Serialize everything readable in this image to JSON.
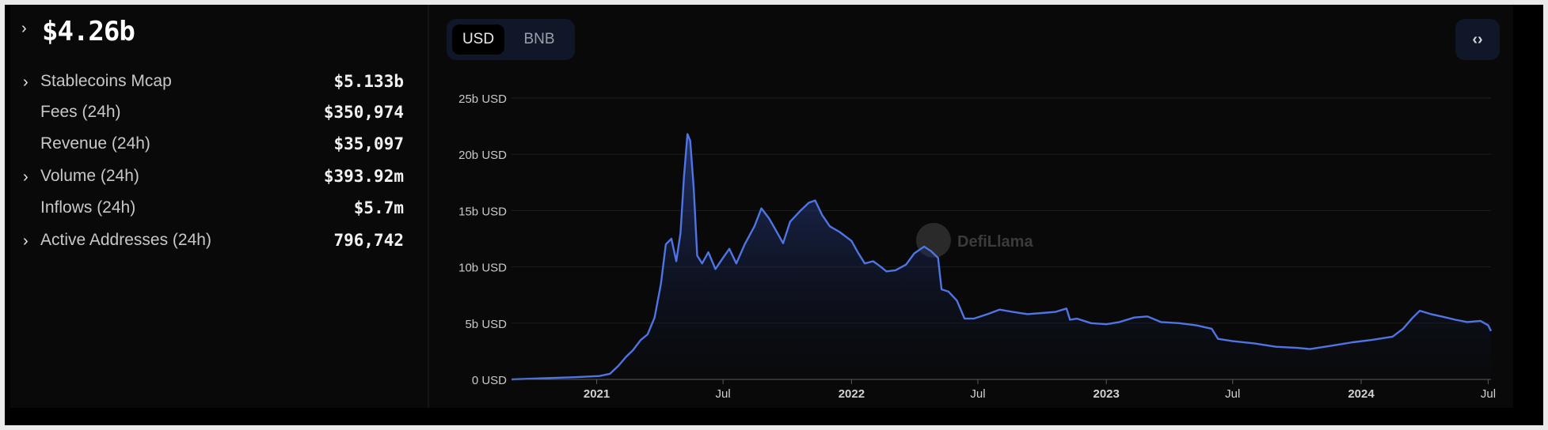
{
  "header": {
    "tvl": "$4.26b"
  },
  "metrics": [
    {
      "label": "Stablecoins Mcap",
      "value": "$5.133b",
      "expandable": true
    },
    {
      "label": "Fees (24h)",
      "value": "$350,974",
      "expandable": false
    },
    {
      "label": "Revenue (24h)",
      "value": "$35,097",
      "expandable": false
    },
    {
      "label": "Volume (24h)",
      "value": "$393.92m",
      "expandable": true
    },
    {
      "label": "Inflows (24h)",
      "value": "$5.7m",
      "expandable": false
    },
    {
      "label": "Active Addresses (24h)",
      "value": "796,742",
      "expandable": true
    }
  ],
  "toggle": {
    "options": [
      "USD",
      "BNB"
    ],
    "selected": "USD"
  },
  "embed_icon": "code-icon",
  "watermark": "DefiLlama",
  "colors": {
    "line": "#4f74e3",
    "background": "#090909",
    "toggle_bg": "#0f1729"
  },
  "chart_data": {
    "type": "area",
    "title": "",
    "xlabel": "",
    "ylabel": "",
    "ylim": [
      0,
      25
    ],
    "y_unit": "b USD",
    "y_ticks": [
      "0 USD",
      "5b USD",
      "10b USD",
      "15b USD",
      "20b USD",
      "25b USD"
    ],
    "x_ticks": [
      "2021",
      "Jul",
      "2022",
      "Jul",
      "2023",
      "Jul",
      "2024",
      "Jul"
    ],
    "x_tick_dates": [
      "2021-01-01",
      "2021-07-01",
      "2022-01-01",
      "2022-07-01",
      "2023-01-01",
      "2023-07-01",
      "2024-01-01",
      "2024-07-01"
    ],
    "grid": true,
    "legend": "none",
    "series": [
      {
        "points": [
          [
            "2020-09-01",
            0.0
          ],
          [
            "2020-10-15",
            0.1
          ],
          [
            "2020-12-01",
            0.2
          ],
          [
            "2021-01-05",
            0.3
          ],
          [
            "2021-01-20",
            0.5
          ],
          [
            "2021-02-01",
            1.2
          ],
          [
            "2021-02-12",
            2.0
          ],
          [
            "2021-02-22",
            2.6
          ],
          [
            "2021-03-05",
            3.5
          ],
          [
            "2021-03-15",
            4.0
          ],
          [
            "2021-03-25",
            5.5
          ],
          [
            "2021-04-03",
            8.5
          ],
          [
            "2021-04-10",
            12.0
          ],
          [
            "2021-04-18",
            12.5
          ],
          [
            "2021-04-25",
            10.5
          ],
          [
            "2021-05-01",
            13.0
          ],
          [
            "2021-05-06",
            18.0
          ],
          [
            "2021-05-11",
            21.8
          ],
          [
            "2021-05-15",
            21.2
          ],
          [
            "2021-05-20",
            17.0
          ],
          [
            "2021-05-25",
            11.0
          ],
          [
            "2021-06-01",
            10.3
          ],
          [
            "2021-06-10",
            11.3
          ],
          [
            "2021-06-20",
            9.8
          ],
          [
            "2021-07-01",
            10.8
          ],
          [
            "2021-07-10",
            11.6
          ],
          [
            "2021-07-20",
            10.3
          ],
          [
            "2021-08-01",
            12.0
          ],
          [
            "2021-08-15",
            13.6
          ],
          [
            "2021-08-25",
            15.2
          ],
          [
            "2021-09-05",
            14.3
          ],
          [
            "2021-09-15",
            13.2
          ],
          [
            "2021-09-25",
            12.1
          ],
          [
            "2021-10-05",
            14.0
          ],
          [
            "2021-10-20",
            15.0
          ],
          [
            "2021-11-01",
            15.7
          ],
          [
            "2021-11-10",
            15.9
          ],
          [
            "2021-11-20",
            14.6
          ],
          [
            "2021-12-01",
            13.6
          ],
          [
            "2021-12-15",
            13.1
          ],
          [
            "2022-01-01",
            12.3
          ],
          [
            "2022-01-10",
            11.3
          ],
          [
            "2022-01-20",
            10.3
          ],
          [
            "2022-02-01",
            10.5
          ],
          [
            "2022-02-10",
            10.1
          ],
          [
            "2022-02-20",
            9.6
          ],
          [
            "2022-03-05",
            9.7
          ],
          [
            "2022-03-20",
            10.2
          ],
          [
            "2022-04-01",
            11.2
          ],
          [
            "2022-04-15",
            11.8
          ],
          [
            "2022-04-25",
            11.4
          ],
          [
            "2022-05-05",
            10.8
          ],
          [
            "2022-05-10",
            8.0
          ],
          [
            "2022-05-20",
            7.8
          ],
          [
            "2022-06-01",
            7.0
          ],
          [
            "2022-06-12",
            5.4
          ],
          [
            "2022-06-25",
            5.4
          ],
          [
            "2022-07-15",
            5.8
          ],
          [
            "2022-08-01",
            6.2
          ],
          [
            "2022-08-20",
            6.0
          ],
          [
            "2022-09-10",
            5.8
          ],
          [
            "2022-10-01",
            5.9
          ],
          [
            "2022-10-20",
            6.0
          ],
          [
            "2022-11-05",
            6.3
          ],
          [
            "2022-11-10",
            5.3
          ],
          [
            "2022-11-20",
            5.4
          ],
          [
            "2022-12-10",
            5.0
          ],
          [
            "2023-01-01",
            4.9
          ],
          [
            "2023-01-20",
            5.1
          ],
          [
            "2023-02-10",
            5.5
          ],
          [
            "2023-03-01",
            5.6
          ],
          [
            "2023-03-20",
            5.1
          ],
          [
            "2023-04-15",
            5.0
          ],
          [
            "2023-05-10",
            4.8
          ],
          [
            "2023-06-01",
            4.5
          ],
          [
            "2023-06-10",
            3.6
          ],
          [
            "2023-07-01",
            3.4
          ],
          [
            "2023-08-01",
            3.2
          ],
          [
            "2023-09-01",
            2.9
          ],
          [
            "2023-10-01",
            2.8
          ],
          [
            "2023-10-20",
            2.7
          ],
          [
            "2023-11-20",
            3.0
          ],
          [
            "2023-12-20",
            3.3
          ],
          [
            "2024-01-15",
            3.5
          ],
          [
            "2024-02-15",
            3.8
          ],
          [
            "2024-03-01",
            4.5
          ],
          [
            "2024-03-15",
            5.5
          ],
          [
            "2024-03-25",
            6.1
          ],
          [
            "2024-04-10",
            5.8
          ],
          [
            "2024-04-25",
            5.6
          ],
          [
            "2024-05-15",
            5.3
          ],
          [
            "2024-06-01",
            5.1
          ],
          [
            "2024-06-20",
            5.2
          ],
          [
            "2024-07-01",
            4.8
          ],
          [
            "2024-07-05",
            4.3
          ]
        ]
      }
    ]
  }
}
